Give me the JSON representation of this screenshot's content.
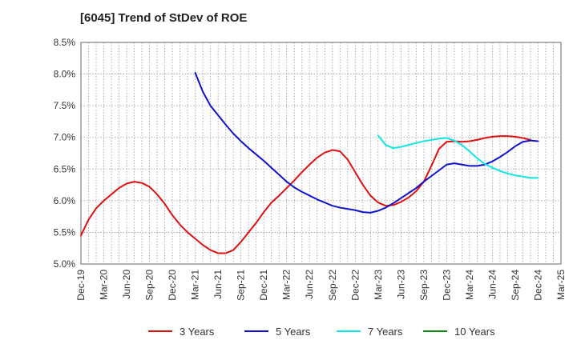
{
  "chart_data": {
    "type": "line",
    "title": "[6045]  Trend of StDev of ROE",
    "xlabel": "",
    "ylabel": "",
    "ylim": [
      5.0,
      8.5
    ],
    "y_ticks": [
      5.0,
      5.5,
      6.0,
      6.5,
      7.0,
      7.5,
      8.0,
      8.5
    ],
    "y_tick_labels": [
      "5.0%",
      "5.5%",
      "6.0%",
      "6.5%",
      "7.0%",
      "7.5%",
      "8.0%",
      "8.5%"
    ],
    "x_tick_labels": [
      "Dec-19",
      "Mar-20",
      "Jun-20",
      "Sep-20",
      "Dec-20",
      "Mar-21",
      "Jun-21",
      "Sep-21",
      "Dec-21",
      "Mar-22",
      "Jun-22",
      "Sep-22",
      "Dec-22",
      "Mar-23",
      "Jun-23",
      "Sep-23",
      "Dec-23",
      "Mar-24",
      "Jun-24",
      "Sep-24",
      "Dec-24",
      "Mar-25"
    ],
    "grid": true,
    "legend_position": "bottom",
    "series": [
      {
        "name": "3 Years",
        "color": "#dd1111",
        "points": [
          [
            "Dec-19",
            5.45
          ],
          [
            "Jan-20",
            5.7
          ],
          [
            "Feb-20",
            5.88
          ],
          [
            "Mar-20",
            6.0
          ],
          [
            "Apr-20",
            6.1
          ],
          [
            "May-20",
            6.2
          ],
          [
            "Jun-20",
            6.27
          ],
          [
            "Jul-20",
            6.3
          ],
          [
            "Aug-20",
            6.28
          ],
          [
            "Sep-20",
            6.22
          ],
          [
            "Oct-20",
            6.1
          ],
          [
            "Nov-20",
            5.95
          ],
          [
            "Dec-20",
            5.77
          ],
          [
            "Jan-21",
            5.62
          ],
          [
            "Feb-21",
            5.5
          ],
          [
            "Mar-21",
            5.4
          ],
          [
            "Apr-21",
            5.3
          ],
          [
            "May-21",
            5.22
          ],
          [
            "Jun-21",
            5.17
          ],
          [
            "Jul-21",
            5.17
          ],
          [
            "Aug-21",
            5.22
          ],
          [
            "Sep-21",
            5.35
          ],
          [
            "Oct-21",
            5.5
          ],
          [
            "Nov-21",
            5.65
          ],
          [
            "Dec-21",
            5.82
          ],
          [
            "Jan-22",
            5.97
          ],
          [
            "Feb-22",
            6.08
          ],
          [
            "Mar-22",
            6.2
          ],
          [
            "Apr-22",
            6.32
          ],
          [
            "May-22",
            6.45
          ],
          [
            "Jun-22",
            6.57
          ],
          [
            "Jul-22",
            6.68
          ],
          [
            "Aug-22",
            6.76
          ],
          [
            "Sep-22",
            6.8
          ],
          [
            "Oct-22",
            6.78
          ],
          [
            "Nov-22",
            6.65
          ],
          [
            "Dec-22",
            6.45
          ],
          [
            "Jan-23",
            6.25
          ],
          [
            "Feb-23",
            6.08
          ],
          [
            "Mar-23",
            5.97
          ],
          [
            "Apr-23",
            5.92
          ],
          [
            "May-23",
            5.93
          ],
          [
            "Jun-23",
            5.98
          ],
          [
            "Jul-23",
            6.05
          ],
          [
            "Aug-23",
            6.15
          ],
          [
            "Sep-23",
            6.3
          ],
          [
            "Oct-23",
            6.55
          ],
          [
            "Nov-23",
            6.82
          ],
          [
            "Dec-23",
            6.93
          ],
          [
            "Jan-24",
            6.94
          ],
          [
            "Feb-24",
            6.93
          ],
          [
            "Mar-24",
            6.94
          ],
          [
            "Apr-24",
            6.96
          ],
          [
            "May-24",
            6.99
          ],
          [
            "Jun-24",
            7.01
          ],
          [
            "Jul-24",
            7.02
          ],
          [
            "Aug-24",
            7.02
          ],
          [
            "Sep-24",
            7.01
          ],
          [
            "Oct-24",
            6.99
          ],
          [
            "Nov-24",
            6.96
          ]
        ]
      },
      {
        "name": "5 Years",
        "color": "#1111cc",
        "points": [
          [
            "Mar-21",
            8.02
          ],
          [
            "Apr-21",
            7.72
          ],
          [
            "May-21",
            7.5
          ],
          [
            "Jun-21",
            7.35
          ],
          [
            "Jul-21",
            7.2
          ],
          [
            "Aug-21",
            7.06
          ],
          [
            "Sep-21",
            6.94
          ],
          [
            "Oct-21",
            6.83
          ],
          [
            "Nov-21",
            6.73
          ],
          [
            "Dec-21",
            6.63
          ],
          [
            "Jan-22",
            6.52
          ],
          [
            "Feb-22",
            6.41
          ],
          [
            "Mar-22",
            6.3
          ],
          [
            "Apr-22",
            6.21
          ],
          [
            "May-22",
            6.14
          ],
          [
            "Jun-22",
            6.08
          ],
          [
            "Jul-22",
            6.02
          ],
          [
            "Aug-22",
            5.97
          ],
          [
            "Sep-22",
            5.92
          ],
          [
            "Oct-22",
            5.89
          ],
          [
            "Nov-22",
            5.87
          ],
          [
            "Dec-22",
            5.85
          ],
          [
            "Jan-23",
            5.82
          ],
          [
            "Feb-23",
            5.81
          ],
          [
            "Mar-23",
            5.84
          ],
          [
            "Apr-23",
            5.89
          ],
          [
            "May-23",
            5.96
          ],
          [
            "Jun-23",
            6.04
          ],
          [
            "Jul-23",
            6.12
          ],
          [
            "Aug-23",
            6.2
          ],
          [
            "Sep-23",
            6.3
          ],
          [
            "Oct-23",
            6.39
          ],
          [
            "Nov-23",
            6.48
          ],
          [
            "Dec-23",
            6.57
          ],
          [
            "Jan-24",
            6.59
          ],
          [
            "Feb-24",
            6.57
          ],
          [
            "Mar-24",
            6.55
          ],
          [
            "Apr-24",
            6.55
          ],
          [
            "May-24",
            6.57
          ],
          [
            "Jun-24",
            6.62
          ],
          [
            "Jul-24",
            6.69
          ],
          [
            "Aug-24",
            6.77
          ],
          [
            "Sep-24",
            6.86
          ],
          [
            "Oct-24",
            6.93
          ],
          [
            "Nov-24",
            6.95
          ],
          [
            "Dec-24",
            6.94
          ]
        ]
      },
      {
        "name": "7 Years",
        "color": "#11e5e5",
        "points": [
          [
            "Mar-23",
            7.03
          ],
          [
            "Apr-23",
            6.88
          ],
          [
            "May-23",
            6.83
          ],
          [
            "Jun-23",
            6.85
          ],
          [
            "Jul-23",
            6.88
          ],
          [
            "Aug-23",
            6.91
          ],
          [
            "Sep-23",
            6.94
          ],
          [
            "Oct-23",
            6.96
          ],
          [
            "Nov-23",
            6.98
          ],
          [
            "Dec-23",
            6.99
          ],
          [
            "Jan-24",
            6.95
          ],
          [
            "Feb-24",
            6.88
          ],
          [
            "Mar-24",
            6.78
          ],
          [
            "Apr-24",
            6.67
          ],
          [
            "May-24",
            6.58
          ],
          [
            "Jun-24",
            6.52
          ],
          [
            "Jul-24",
            6.47
          ],
          [
            "Aug-24",
            6.43
          ],
          [
            "Sep-24",
            6.4
          ],
          [
            "Oct-24",
            6.38
          ],
          [
            "Nov-24",
            6.36
          ],
          [
            "Dec-24",
            6.36
          ]
        ]
      },
      {
        "name": "10 Years",
        "color": "#118811",
        "points": []
      }
    ]
  }
}
